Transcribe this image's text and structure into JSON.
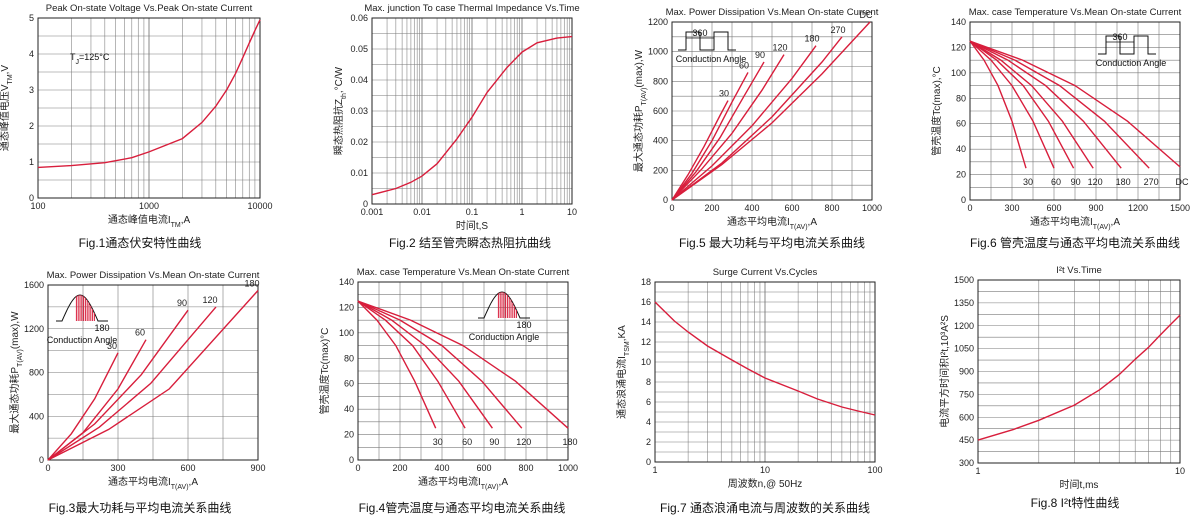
{
  "colors": {
    "curve": "#d81e3c",
    "grid": "#7a7a7a",
    "frame": "#222222",
    "text": "#222222"
  },
  "chart_data": [
    {
      "id": "fig1",
      "type": "line",
      "title": "Peak On-state Voltage Vs.Peak On-state Current",
      "caption": "Fig.1通态伏安特性曲线",
      "xlabel": "通态峰值电流I",
      "xlabel_sub": "TM",
      "xlabel_end": ",A",
      "ylabel": "通态峰值电压V",
      "ylabel_sub": "TM",
      "ylabel_end": ",V",
      "xscale": "log",
      "xlim": [
        100,
        10000
      ],
      "ylim": [
        0,
        5
      ],
      "xticks": [
        100,
        1000,
        10000
      ],
      "xtick_labels": [
        "100",
        "1000",
        "10000"
      ],
      "yticks": [
        0,
        1,
        2,
        3,
        4,
        5
      ],
      "ytick_labels": [
        "0",
        "1",
        "2",
        "3",
        "4",
        "5"
      ],
      "annotation": "T",
      "annotation_sub": "J",
      "annotation_end": "=125°C",
      "series": [
        {
          "x": [
            100,
            200,
            400,
            700,
            1000,
            2000,
            3000,
            4000,
            5000,
            6000,
            7000,
            8000,
            9000,
            10000
          ],
          "y": [
            0.85,
            0.9,
            0.98,
            1.12,
            1.28,
            1.65,
            2.1,
            2.55,
            3.0,
            3.45,
            3.9,
            4.3,
            4.65,
            4.95
          ]
        }
      ]
    },
    {
      "id": "fig2",
      "type": "line",
      "title": "Max. junction To case Thermal Impedance Vs.Time",
      "caption": "Fig.2 结至管壳瞬态热阻抗曲线",
      "xlabel": "时间t,S",
      "xlabel_sub": "",
      "xlabel_end": "",
      "ylabel": "瞬态热阻抗Z",
      "ylabel_sub": "th",
      "ylabel_end": ",°C/W",
      "xscale": "log",
      "xlim": [
        0.001,
        10
      ],
      "ylim": [
        0,
        0.06
      ],
      "xticks": [
        0.001,
        0.01,
        0.1,
        1,
        10
      ],
      "xtick_labels": [
        "0.001",
        "0.01",
        "0.1",
        "1",
        "10"
      ],
      "yticks": [
        0,
        0.01,
        0.02,
        0.03,
        0.04,
        0.05,
        0.06
      ],
      "ytick_labels": [
        "0",
        "0.01",
        "0.02",
        "0.03",
        "0.04",
        "0.05",
        "0.06"
      ],
      "series": [
        {
          "x": [
            0.001,
            0.003,
            0.006,
            0.01,
            0.02,
            0.05,
            0.1,
            0.2,
            0.5,
            1,
            2,
            5,
            10
          ],
          "y": [
            0.003,
            0.005,
            0.007,
            0.009,
            0.013,
            0.021,
            0.028,
            0.036,
            0.044,
            0.049,
            0.052,
            0.0535,
            0.054
          ]
        }
      ]
    },
    {
      "id": "fig5",
      "type": "line",
      "title": "Max. Power Dissipation Vs.Mean On-state Current",
      "caption": "Fig.5 最大功耗与平均电流关系曲线",
      "xlabel": "通态平均电流I",
      "xlabel_sub": "T(AV)",
      "xlabel_end": ",A",
      "ylabel": "最大通态功耗P",
      "ylabel_sub": "T(AV)",
      "ylabel_end": "(max),W",
      "xscale": "linear",
      "xlim": [
        0,
        1000
      ],
      "ylim": [
        0,
        1200
      ],
      "xticks": [
        0,
        200,
        400,
        600,
        800,
        1000
      ],
      "xtick_labels": [
        "0",
        "200",
        "400",
        "600",
        "800",
        "1000"
      ],
      "yticks": [
        0,
        200,
        400,
        600,
        800,
        1000,
        1200
      ],
      "ytick_labels": [
        "0",
        "200",
        "400",
        "600",
        "800",
        "1000",
        "1200"
      ],
      "inset": {
        "kind": "square",
        "angle": "360",
        "label": "Conduction Angle"
      },
      "series": [
        {
          "name": "30",
          "x": [
            0,
            80,
            160,
            240,
            280
          ],
          "y": [
            0,
            170,
            360,
            570,
            670
          ]
        },
        {
          "name": "60",
          "x": [
            0,
            100,
            200,
            300,
            380
          ],
          "y": [
            0,
            180,
            400,
            660,
            860
          ]
        },
        {
          "name": "90",
          "x": [
            0,
            120,
            240,
            360,
            460
          ],
          "y": [
            0,
            190,
            420,
            700,
            930
          ]
        },
        {
          "name": "120",
          "x": [
            0,
            150,
            300,
            450,
            560
          ],
          "y": [
            0,
            210,
            450,
            740,
            980
          ]
        },
        {
          "name": "180",
          "x": [
            0,
            200,
            400,
            600,
            720
          ],
          "y": [
            0,
            230,
            500,
            820,
            1040
          ]
        },
        {
          "name": "270",
          "x": [
            0,
            250,
            500,
            750,
            850
          ],
          "y": [
            0,
            250,
            560,
            930,
            1100
          ]
        },
        {
          "name": "DC",
          "x": [
            0,
            250,
            500,
            750,
            990
          ],
          "y": [
            0,
            240,
            520,
            850,
            1200
          ]
        }
      ]
    },
    {
      "id": "fig6",
      "type": "line",
      "title": "Max. case Temperature Vs.Mean On-state Current",
      "caption": "Fig.6 管壳温度与通态平均电流关系曲线",
      "xlabel": "通态平均电流I",
      "xlabel_sub": "T(AV)",
      "xlabel_end": ",A",
      "ylabel": "管壳温度Tc(max),°C",
      "ylabel_sub": "",
      "ylabel_end": "",
      "xscale": "linear",
      "xlim": [
        0,
        1500
      ],
      "ylim": [
        0,
        140
      ],
      "xticks": [
        0,
        300,
        600,
        900,
        1200,
        1500
      ],
      "xtick_labels": [
        "0",
        "300",
        "600",
        "900",
        "1200",
        "1500"
      ],
      "yticks": [
        0,
        20,
        40,
        60,
        80,
        100,
        120,
        140
      ],
      "ytick_labels": [
        "0",
        "20",
        "40",
        "60",
        "80",
        "100",
        "120",
        "140"
      ],
      "inset": {
        "kind": "square",
        "angle": "360",
        "label": "Conduction Angle"
      },
      "series": [
        {
          "name": "30",
          "x": [
            0,
            100,
            200,
            300,
            400
          ],
          "y": [
            125,
            110,
            90,
            62,
            25
          ]
        },
        {
          "name": "60",
          "x": [
            0,
            150,
            300,
            450,
            600
          ],
          "y": [
            125,
            110,
            90,
            62,
            25
          ]
        },
        {
          "name": "90",
          "x": [
            0,
            190,
            380,
            560,
            740
          ],
          "y": [
            125,
            110,
            90,
            62,
            25
          ]
        },
        {
          "name": "120",
          "x": [
            0,
            220,
            440,
            660,
            880
          ],
          "y": [
            125,
            110,
            90,
            62,
            25
          ]
        },
        {
          "name": "180",
          "x": [
            0,
            270,
            540,
            810,
            1080
          ],
          "y": [
            125,
            110,
            90,
            62,
            25
          ]
        },
        {
          "name": "270",
          "x": [
            0,
            320,
            640,
            960,
            1280
          ],
          "y": [
            125,
            110,
            90,
            62,
            25
          ]
        },
        {
          "name": "DC",
          "x": [
            0,
            375,
            750,
            1125,
            1500
          ],
          "y": [
            125,
            110,
            90,
            62,
            26
          ]
        }
      ]
    },
    {
      "id": "fig3",
      "type": "line",
      "title": "Max. Power Dissipation Vs.Mean On-state Current",
      "caption": "Fig.3最大功耗与平均电流关系曲线",
      "xlabel": "通态平均电流I",
      "xlabel_sub": "T(AV)",
      "xlabel_end": ",A",
      "ylabel": "最大通态功耗P",
      "ylabel_sub": "T(AV)",
      "ylabel_end": "(max),W",
      "xscale": "linear",
      "xlim": [
        0,
        900
      ],
      "ylim": [
        0,
        1600
      ],
      "xticks": [
        0,
        300,
        600,
        900
      ],
      "xtick_labels": [
        "0",
        "300",
        "600",
        "900"
      ],
      "yticks": [
        0,
        400,
        800,
        1200,
        1600
      ],
      "ytick_labels": [
        "0",
        "400",
        "800",
        "1200",
        "1600"
      ],
      "inset": {
        "kind": "sine",
        "angle": "180",
        "label": "Conduction Angle"
      },
      "series": [
        {
          "name": "30",
          "x": [
            0,
            100,
            200,
            300
          ],
          "y": [
            0,
            240,
            560,
            980
          ]
        },
        {
          "name": "60",
          "x": [
            0,
            150,
            300,
            420
          ],
          "y": [
            0,
            250,
            650,
            1100
          ]
        },
        {
          "name": "90",
          "x": [
            0,
            200,
            400,
            600
          ],
          "y": [
            0,
            330,
            780,
            1370
          ]
        },
        {
          "name": "120",
          "x": [
            0,
            220,
            440,
            720
          ],
          "y": [
            0,
            300,
            700,
            1400
          ]
        },
        {
          "name": "180",
          "x": [
            0,
            260,
            520,
            900
          ],
          "y": [
            0,
            280,
            650,
            1550
          ]
        }
      ]
    },
    {
      "id": "fig4",
      "type": "line",
      "title": "Max. case Temperature Vs.Mean On-state Current",
      "caption": "Fig.4管壳温度与通态平均电流关系曲线",
      "xlabel": "通态平均电流I",
      "xlabel_sub": "T(AV)",
      "xlabel_end": ",A",
      "ylabel": "管壳温度Tc(max)°C",
      "ylabel_sub": "",
      "ylabel_end": "",
      "xscale": "linear",
      "xlim": [
        0,
        1000
      ],
      "ylim": [
        0,
        140
      ],
      "xticks": [
        0,
        200,
        400,
        600,
        800,
        1000
      ],
      "xtick_labels": [
        "0",
        "200",
        "400",
        "600",
        "800",
        "1000"
      ],
      "yticks": [
        0,
        20,
        40,
        60,
        80,
        100,
        120,
        140
      ],
      "ytick_labels": [
        "0",
        "20",
        "40",
        "60",
        "80",
        "100",
        "120",
        "140"
      ],
      "inset": {
        "kind": "sine",
        "angle": "180",
        "label": "Conduction Angle"
      },
      "series": [
        {
          "name": "30",
          "x": [
            0,
            90,
            180,
            270,
            370
          ],
          "y": [
            125,
            110,
            90,
            62,
            25
          ]
        },
        {
          "name": "60",
          "x": [
            0,
            130,
            260,
            380,
            510
          ],
          "y": [
            125,
            110,
            90,
            62,
            25
          ]
        },
        {
          "name": "90",
          "x": [
            0,
            160,
            320,
            480,
            640
          ],
          "y": [
            125,
            110,
            90,
            62,
            25
          ]
        },
        {
          "name": "120",
          "x": [
            0,
            200,
            400,
            590,
            780
          ],
          "y": [
            125,
            110,
            90,
            62,
            25
          ]
        },
        {
          "name": "180",
          "x": [
            0,
            250,
            500,
            750,
            1000
          ],
          "y": [
            125,
            110,
            90,
            62,
            25
          ]
        }
      ]
    },
    {
      "id": "fig7",
      "type": "line",
      "title": "Surge Current Vs.Cycles",
      "caption": "Fig.7 通态浪涌电流与周波数的关系曲线",
      "xlabel": "周波数n,@ 50Hz",
      "xlabel_sub": "",
      "xlabel_end": "",
      "ylabel": "通态浪涌电流I",
      "ylabel_sub": "TSM",
      "ylabel_end": ",KA",
      "xscale": "log",
      "xlim": [
        1,
        100
      ],
      "ylim": [
        0,
        18
      ],
      "xticks": [
        1,
        10,
        100
      ],
      "xtick_labels": [
        "1",
        "10",
        "100"
      ],
      "yticks": [
        0,
        2,
        4,
        6,
        8,
        10,
        12,
        14,
        16,
        18
      ],
      "ytick_labels": [
        "0",
        "2",
        "4",
        "6",
        "8",
        "10",
        "12",
        "14",
        "16",
        "18"
      ],
      "series": [
        {
          "x": [
            1,
            1.5,
            2,
            3,
            5,
            7,
            10,
            20,
            30,
            50,
            70,
            100
          ],
          "y": [
            16,
            14.1,
            13,
            11.6,
            10.2,
            9.3,
            8.4,
            7.1,
            6.3,
            5.5,
            5.1,
            4.7
          ]
        }
      ]
    },
    {
      "id": "fig8",
      "type": "line",
      "title": "I²t  Vs.Time",
      "caption": "Fig.8 I²t特性曲线",
      "xlabel": "时间t,ms",
      "xlabel_sub": "",
      "xlabel_end": "",
      "ylabel": "电流平方时间积I²t,10³A²S",
      "ylabel_sub": "",
      "ylabel_end": "",
      "xscale": "log",
      "xlim": [
        1,
        10
      ],
      "ylim": [
        300,
        1500
      ],
      "xticks": [
        1,
        10
      ],
      "xtick_labels": [
        "1",
        "10"
      ],
      "yticks": [
        300,
        450,
        600,
        750,
        900,
        1050,
        1200,
        1350,
        1500
      ],
      "ytick_labels": [
        "300",
        "450",
        "600",
        "750",
        "900",
        "1050",
        "1200",
        "1350",
        "1500"
      ],
      "series": [
        {
          "x": [
            1,
            1.5,
            2,
            3,
            4,
            5,
            6,
            7,
            8,
            9,
            10
          ],
          "y": [
            450,
            520,
            580,
            680,
            780,
            880,
            980,
            1060,
            1140,
            1210,
            1270
          ]
        }
      ]
    }
  ]
}
